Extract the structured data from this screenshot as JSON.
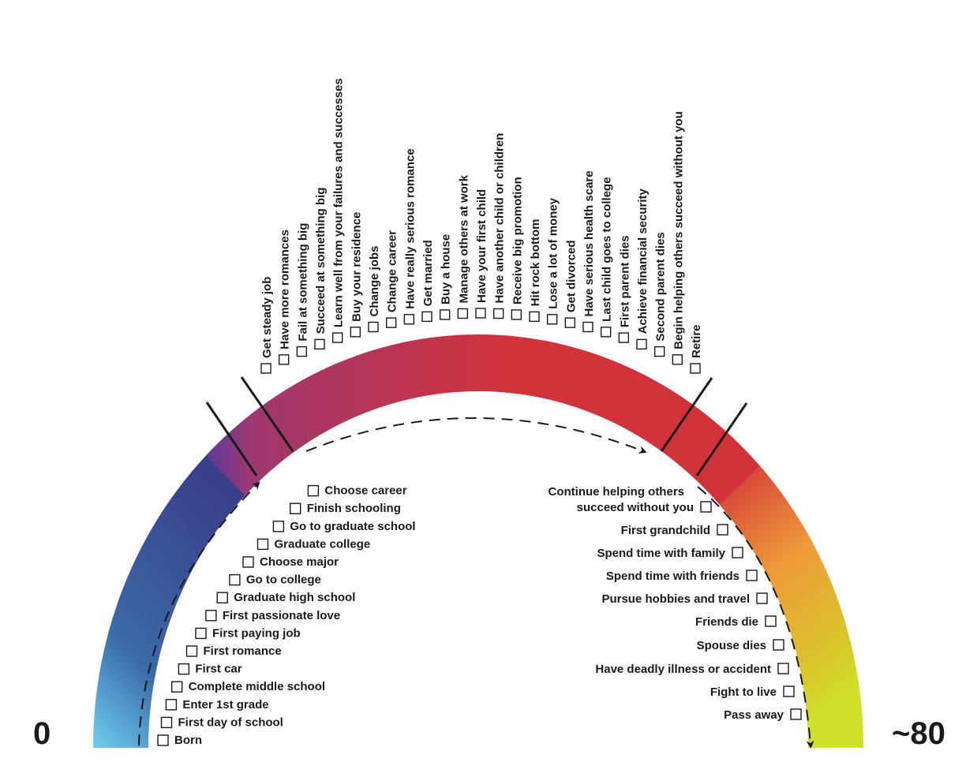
{
  "axis": {
    "start_label": "0",
    "end_label": "~80"
  },
  "childhood_milestones": [
    "Born",
    "First day of school",
    "Enter 1st grade",
    "Complete middle school",
    "First car",
    "First romance",
    "First paying job",
    "First passionate love",
    "Graduate high school",
    "Go to college",
    "Choose major",
    "Graduate college",
    "Go to graduate school",
    "Finish schooling",
    "Choose career"
  ],
  "adulthood_milestones": [
    "Get steady job",
    "Have more romances",
    "Fail at something big",
    "Succeed at something big",
    "Learn well from your failures and successes",
    "Buy your residence",
    "Change jobs",
    "Change career",
    "Have really serious romance",
    "Get married",
    "Buy a house",
    "Manage others at work",
    "Have your first child",
    "Have another child or children",
    "Receive big promotion",
    "Hit rock bottom",
    "Lose a lot of money",
    "Get divorced",
    "Have serious health scare",
    "Last child goes to college",
    "First parent dies",
    "Achieve financial security",
    "Second parent dies",
    "Begin helping others succeed without you",
    "Retire"
  ],
  "retirement_milestones": [
    [
      "Continue helping others",
      "succeed without you"
    ],
    [
      "First grandchild"
    ],
    [
      "Spend time with family"
    ],
    [
      "Spend time with friends"
    ],
    [
      "Pursue hobbies and travel"
    ],
    [
      "Friends die"
    ],
    [
      "Spouse dies"
    ],
    [
      "Have deadly illness or accident"
    ],
    [
      "Fight to live"
    ],
    [
      "Pass away"
    ]
  ],
  "colors": {
    "arc_start": "#6ecff0",
    "arc_blue": "#3a6aa8",
    "arc_navy": "#3a3f8a",
    "arc_purple": "#5a3a9a",
    "arc_magenta": "#9e3870",
    "arc_red": "#d2323a",
    "arc_orange": "#ee9a3a",
    "arc_yellow": "#d9c82a",
    "arc_end": "#cfe02a",
    "ink": "#1a1a1a"
  }
}
